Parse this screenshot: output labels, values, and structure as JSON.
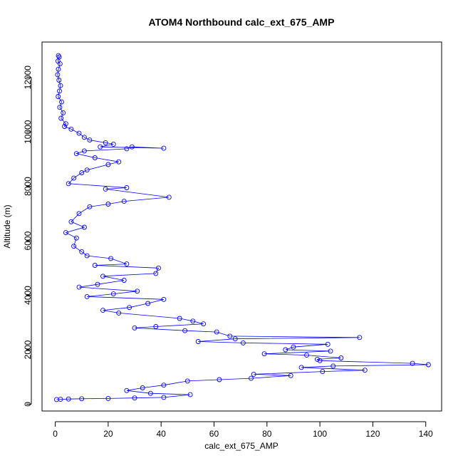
{
  "chart_data": {
    "type": "scatter",
    "title": "ATOM4 Northbound calc_ext_675_AMP",
    "xlabel": "calc_ext_675_AMP",
    "ylabel": "Altitude (m)",
    "xlim": [
      -5,
      146
    ],
    "ylim": [
      -250,
      13300
    ],
    "xticks": [
      "0",
      "20",
      "40",
      "60",
      "80",
      "100",
      "120",
      "140"
    ],
    "yticks": [
      "0",
      "2000",
      "4000",
      "6000",
      "8000",
      "10000",
      "12000"
    ],
    "grid": false,
    "series": [
      {
        "color": "#0000ff",
        "marker": "open-circle-with-line",
        "points": [
          [
            1.2,
            12800
          ],
          [
            1.5,
            12750
          ],
          [
            1.0,
            12600
          ],
          [
            1.8,
            12500
          ],
          [
            1.2,
            12300
          ],
          [
            0.9,
            12100
          ],
          [
            1.4,
            11900
          ],
          [
            2.0,
            11700
          ],
          [
            1.6,
            11500
          ],
          [
            1.1,
            11300
          ],
          [
            2.4,
            11100
          ],
          [
            1.7,
            10900
          ],
          [
            3.0,
            10700
          ],
          [
            2.2,
            10500
          ],
          [
            4.0,
            10300
          ],
          [
            3.5,
            10200
          ],
          [
            6.0,
            10100
          ],
          [
            9.0,
            9950
          ],
          [
            11.0,
            9800
          ],
          [
            13.0,
            9700
          ],
          [
            19.0,
            9600
          ],
          [
            22.0,
            9550
          ],
          [
            17.0,
            9450
          ],
          [
            41.0,
            9400
          ],
          [
            29.0,
            9450
          ],
          [
            27.0,
            9380
          ],
          [
            11.0,
            9300
          ],
          [
            8.0,
            9200
          ],
          [
            15.0,
            9050
          ],
          [
            24.0,
            8900
          ],
          [
            20.0,
            8800
          ],
          [
            12.0,
            8600
          ],
          [
            10.0,
            8500
          ],
          [
            7.0,
            8300
          ],
          [
            5.0,
            8100
          ],
          [
            27.0,
            7950
          ],
          [
            19.0,
            7900
          ],
          [
            43.0,
            7600
          ],
          [
            26.0,
            7450
          ],
          [
            20.0,
            7350
          ],
          [
            13.0,
            7250
          ],
          [
            9.0,
            7000
          ],
          [
            6.0,
            6700
          ],
          [
            11.0,
            6500
          ],
          [
            4.0,
            6300
          ],
          [
            8.0,
            6100
          ],
          [
            7.0,
            5800
          ],
          [
            10.0,
            5600
          ],
          [
            12.0,
            5450
          ],
          [
            21.0,
            5350
          ],
          [
            27.0,
            5150
          ],
          [
            15.0,
            5100
          ],
          [
            39.0,
            5000
          ],
          [
            38.0,
            4800
          ],
          [
            18.0,
            4700
          ],
          [
            26.0,
            4550
          ],
          [
            16.0,
            4400
          ],
          [
            9.0,
            4300
          ],
          [
            31.0,
            4150
          ],
          [
            22.0,
            4050
          ],
          [
            12.0,
            3950
          ],
          [
            41.0,
            3850
          ],
          [
            35.0,
            3700
          ],
          [
            28.0,
            3550
          ],
          [
            18.0,
            3450
          ],
          [
            24.0,
            3350
          ],
          [
            47.0,
            3150
          ],
          [
            52.0,
            3050
          ],
          [
            56.0,
            2950
          ],
          [
            38.0,
            2850
          ],
          [
            30.0,
            2800
          ],
          [
            49.0,
            2700
          ],
          [
            61.0,
            2650
          ],
          [
            66.0,
            2500
          ],
          [
            115.0,
            2450
          ],
          [
            68.0,
            2400
          ],
          [
            54.0,
            2300
          ],
          [
            71.0,
            2250
          ],
          [
            103.0,
            2200
          ],
          [
            90.0,
            2100
          ],
          [
            87.0,
            2000
          ],
          [
            104.0,
            1950
          ],
          [
            79.0,
            1850
          ],
          [
            95.0,
            1800
          ],
          [
            108.0,
            1700
          ],
          [
            99.0,
            1650
          ],
          [
            100.0,
            1600
          ],
          [
            135.0,
            1500
          ],
          [
            141.0,
            1450
          ],
          [
            105.0,
            1400
          ],
          [
            93.0,
            1350
          ],
          [
            117.0,
            1250
          ],
          [
            101.0,
            1200
          ],
          [
            75.0,
            1100
          ],
          [
            89.0,
            1050
          ],
          [
            74.0,
            950
          ],
          [
            62.0,
            900
          ],
          [
            50.0,
            850
          ],
          [
            41.0,
            700
          ],
          [
            33.0,
            600
          ],
          [
            27.0,
            500
          ],
          [
            36.0,
            400
          ],
          [
            51.0,
            350
          ],
          [
            41.0,
            250
          ],
          [
            30.0,
            230
          ],
          [
            20.0,
            210
          ],
          [
            10.0,
            200
          ],
          [
            5.0,
            190
          ],
          [
            2.0,
            180
          ],
          [
            0.5,
            170
          ]
        ]
      }
    ]
  }
}
